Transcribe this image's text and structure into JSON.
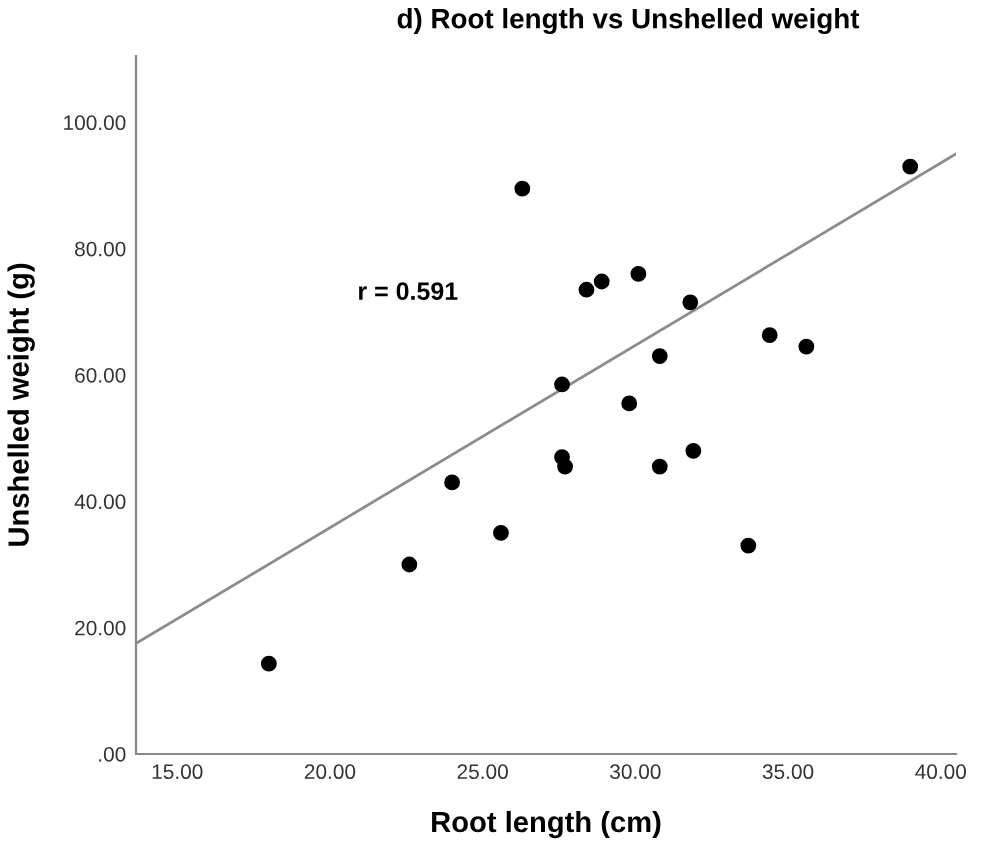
{
  "chart_data": {
    "type": "scatter",
    "title": "d) Root length vs Unshelled weight",
    "xlabel": "Root length (cm)",
    "ylabel": "Unshelled weight (g)",
    "annotations": [
      "r = 0.591"
    ],
    "series": [
      {
        "color": "#000000",
        "marker": "circle",
        "x": [
          18.0,
          22.6,
          24.0,
          25.6,
          27.6,
          27.7,
          27.6,
          29.8,
          30.8,
          31.9,
          33.7,
          26.3,
          28.4,
          28.9,
          30.1,
          30.8,
          31.8,
          34.4,
          35.6,
          39.0
        ],
        "values": [
          14.3,
          30,
          43,
          35,
          47,
          45.5,
          58.5,
          55.5,
          45.5,
          48,
          33,
          89.5,
          73.5,
          74.8,
          76,
          63,
          71.5,
          66.3,
          64.5,
          93
        ]
      },
      {
        "type": "line",
        "color": "#8c8c8c",
        "x": [
          13.65,
          40.5
        ],
        "values": [
          17.5,
          95
        ]
      }
    ],
    "xlim": [
      13.65,
      40.5
    ],
    "ylim": [
      0,
      110.5
    ],
    "xticks": [
      {
        "value": 15,
        "label": "15.00"
      },
      {
        "value": 20,
        "label": "20.00"
      },
      {
        "value": 25,
        "label": "25.00"
      },
      {
        "value": 30,
        "label": "30.00"
      },
      {
        "value": 35,
        "label": "35.00"
      },
      {
        "value": 40,
        "label": "40.00"
      }
    ],
    "yticks": [
      {
        "value": 0,
        "label": ".00"
      },
      {
        "value": 20,
        "label": "20.00"
      },
      {
        "value": 40,
        "label": "40.00"
      },
      {
        "value": 60,
        "label": "60.00"
      },
      {
        "value": 80,
        "label": "80.00"
      },
      {
        "value": 100,
        "label": "100.00"
      }
    ],
    "grid": false,
    "legend": false
  }
}
